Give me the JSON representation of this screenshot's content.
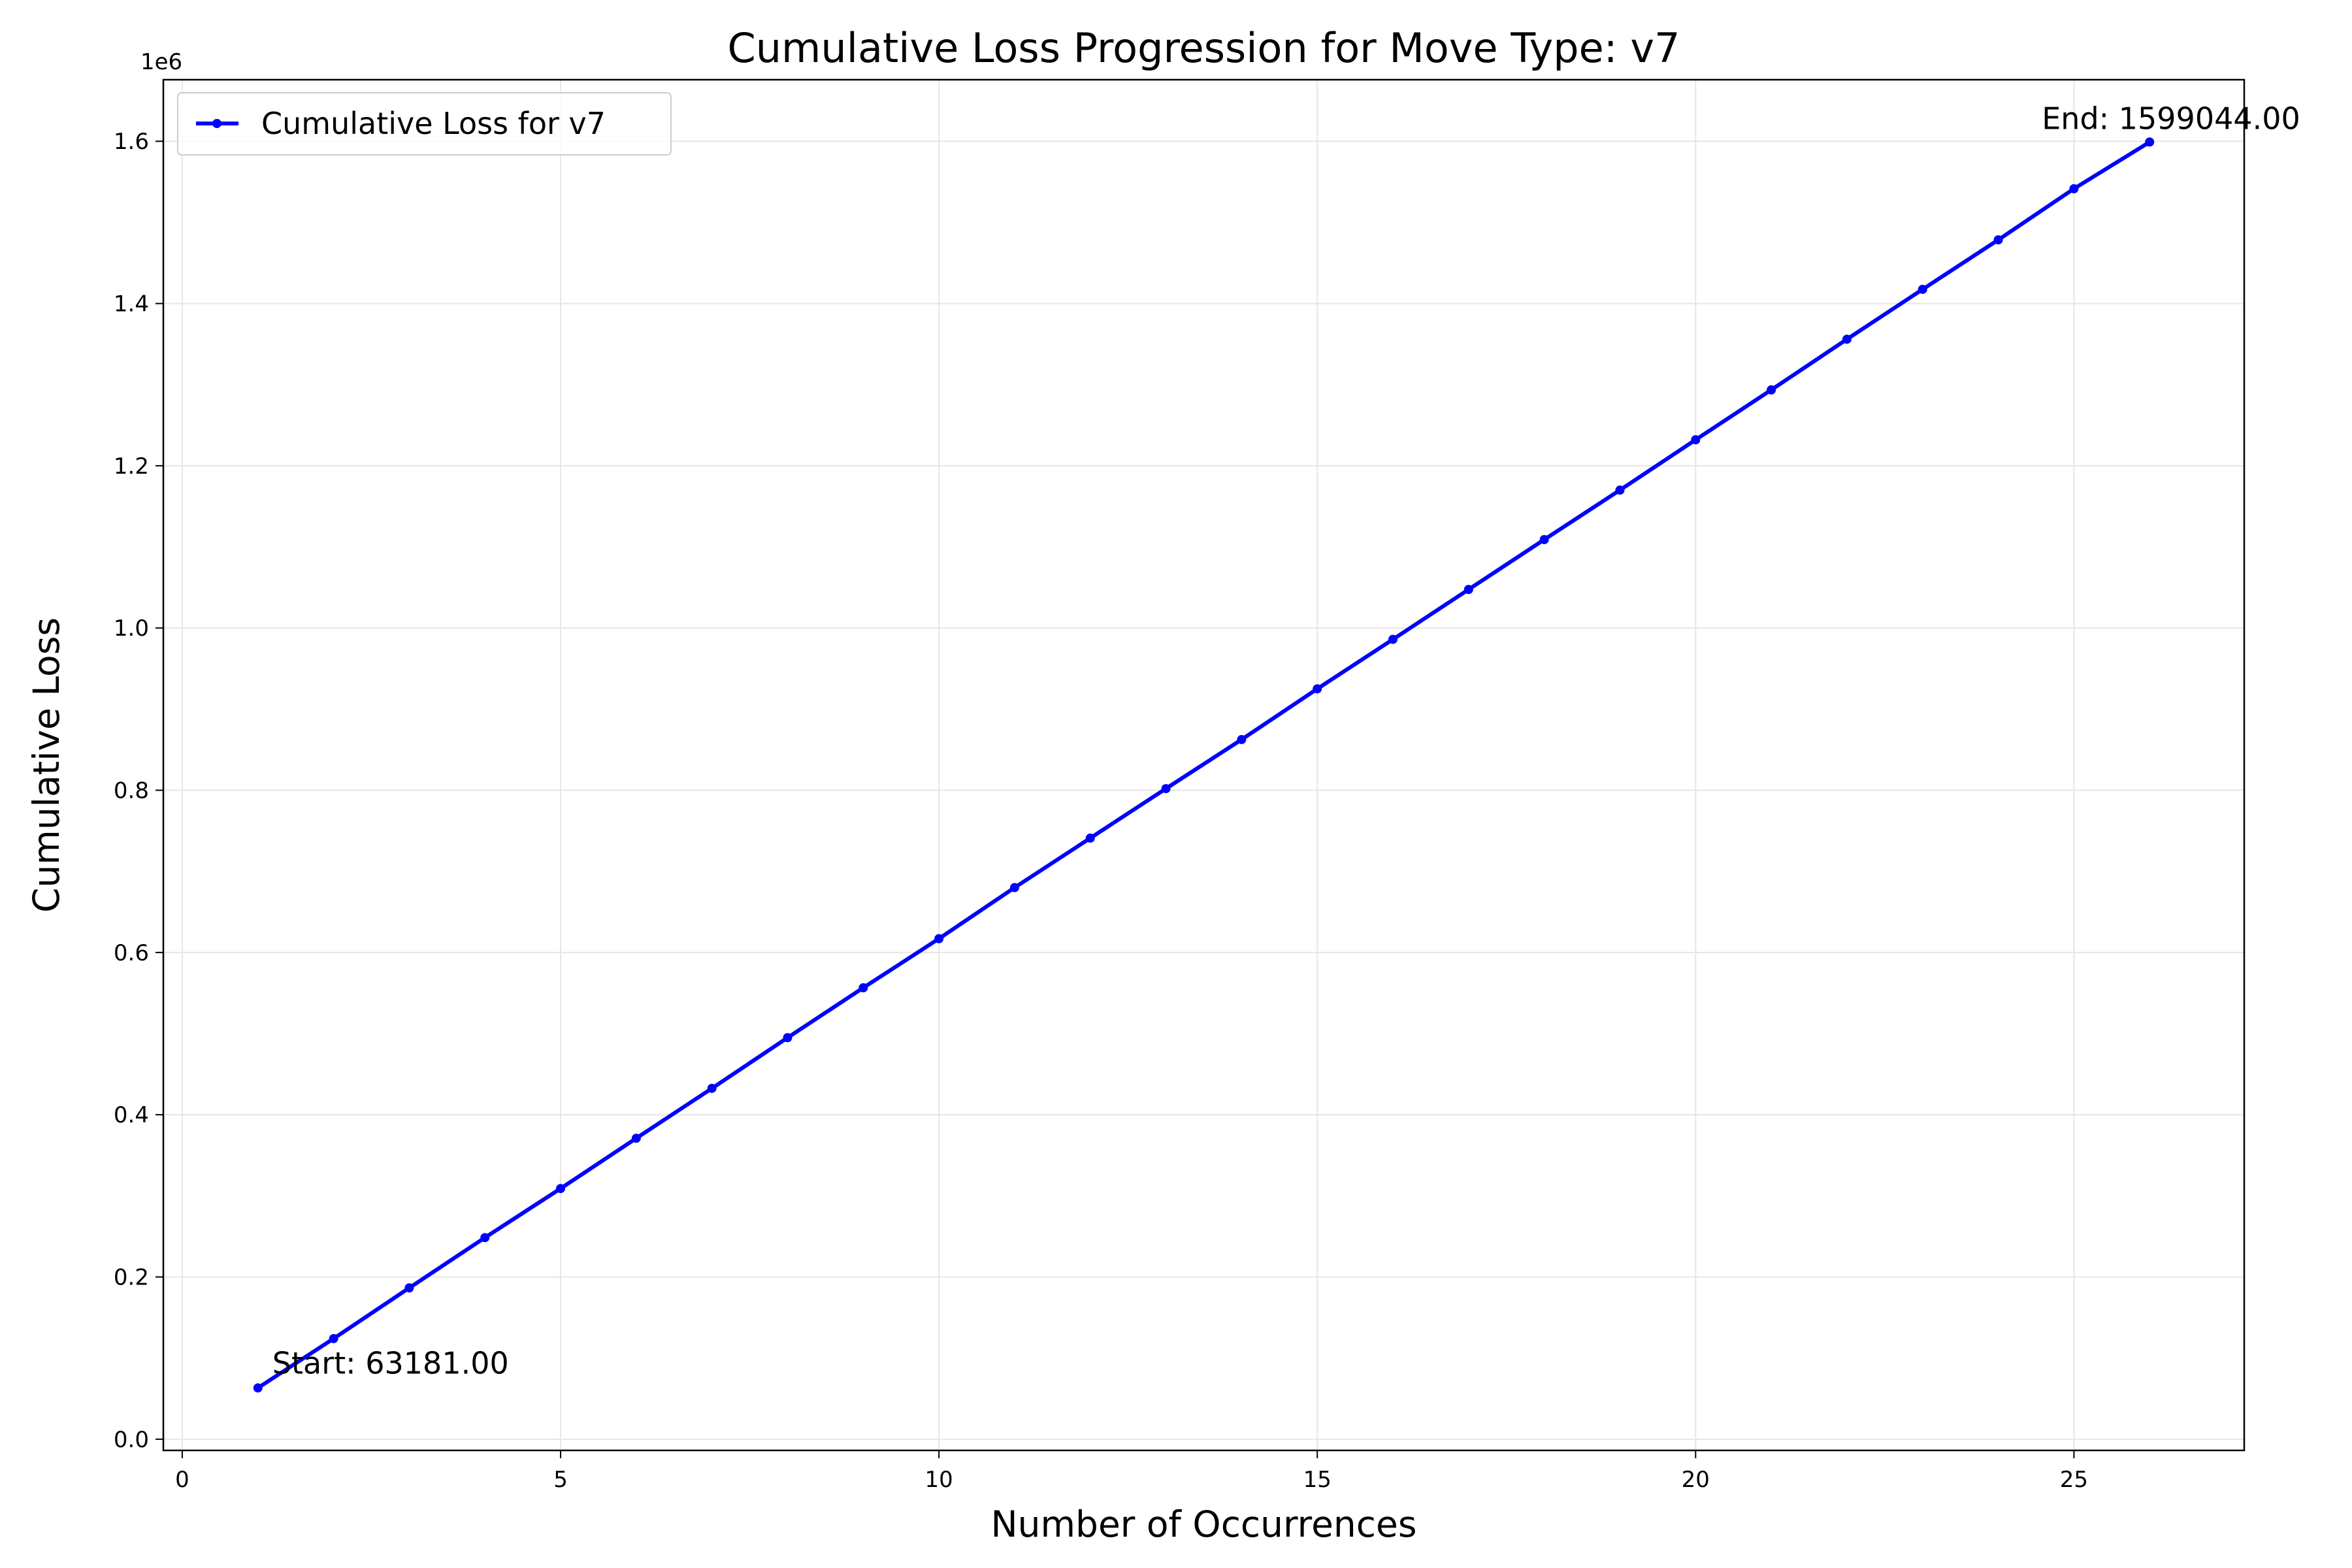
{
  "chart_data": {
    "type": "line",
    "title": "Cumulative Loss Progression for Move Type: v7",
    "xlabel": "Number of Occurrences",
    "ylabel": "Cumulative Loss",
    "y_offset_label": "1e6",
    "xlim": [
      -0.25,
      27.25
    ],
    "ylim": [
      -0.0138,
      1.6759
    ],
    "x_ticks": [
      0,
      5,
      10,
      15,
      20,
      25
    ],
    "y_ticks": [
      0.0,
      0.2,
      0.4,
      0.6,
      0.8,
      1.0,
      1.2,
      1.4,
      1.6
    ],
    "x_tick_labels": [
      "0",
      "5",
      "10",
      "15",
      "20",
      "25"
    ],
    "y_tick_labels": [
      "0.0",
      "0.2",
      "0.4",
      "0.6",
      "0.8",
      "1.0",
      "1.2",
      "1.4",
      "1.6"
    ],
    "grid": true,
    "legend_position": "upper-left",
    "colors": {
      "line": "#0000ff",
      "grid": "#e6e6e6",
      "axes": "#000000"
    },
    "series": [
      {
        "name": "Cumulative Loss for v7",
        "x": [
          1,
          2,
          3,
          4,
          5,
          6,
          7,
          8,
          9,
          10,
          11,
          12,
          13,
          14,
          15,
          16,
          17,
          18,
          19,
          20,
          21,
          22,
          23,
          24,
          25,
          26
        ],
        "y": [
          63181,
          124000,
          186500,
          248500,
          309000,
          371000,
          432500,
          495000,
          556500,
          617000,
          680000,
          741000,
          802000,
          862500,
          925000,
          986000,
          1047500,
          1109000,
          1170000,
          1232000,
          1293500,
          1356000,
          1417500,
          1478500,
          1541500,
          1599044
        ]
      }
    ],
    "annotations": [
      {
        "text": "Start: 63181.00",
        "x": 1,
        "y": 63181
      },
      {
        "text": "End: 1599044.00",
        "x": 26,
        "y": 1599044
      }
    ]
  }
}
